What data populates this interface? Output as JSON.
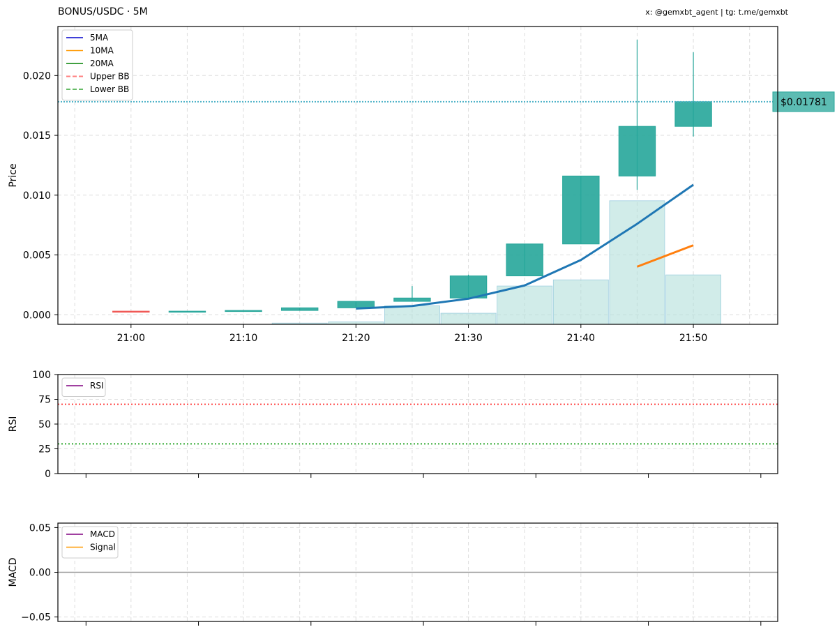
{
  "header": {
    "title": "BONUS/USDC · 5M",
    "credit": "x: @gemxbt_agent | tg: t.me/gemxbt"
  },
  "colors": {
    "up": "#26a69a",
    "down": "#ef5350",
    "ma5": "#1f77b4",
    "ma10": "#ff7f0e",
    "ma20": "#2ca02c",
    "volume": "#b2dfdb",
    "price_line": "#4fb3c8",
    "rsi_overbought": "#ff4444",
    "rsi_oversold": "#33aa33",
    "rsi": "#800080",
    "macd": "#800080",
    "signal": "#ff9900",
    "grid": "#dddddd"
  },
  "chart_data": [
    {
      "type": "candlestick",
      "panel": "price",
      "title": "BONUS/USDC · 5M",
      "ylabel": "Price",
      "ylim": [
        -0.0008,
        0.0241
      ],
      "yticks": [
        "0.000",
        "0.005",
        "0.010",
        "0.015",
        "0.020"
      ],
      "ytick_values": [
        0.0,
        0.005,
        0.01,
        0.015,
        0.02
      ],
      "xticks": [
        "21:00",
        "21:10",
        "21:20",
        "21:30",
        "21:40",
        "21:50"
      ],
      "xtick_minutes": [
        0,
        10,
        20,
        30,
        40,
        50
      ],
      "xlim_minutes": [
        -6.5,
        57.5
      ],
      "grid": true,
      "legend_position": "top-left",
      "legend": [
        {
          "label": "5MA",
          "color": "#0000cc",
          "style": "solid"
        },
        {
          "label": "10MA",
          "color": "#ff9900",
          "style": "solid"
        },
        {
          "label": "20MA",
          "color": "#008000",
          "style": "solid"
        },
        {
          "label": "Upper BB",
          "color": "#ff7f7f",
          "style": "dashed"
        },
        {
          "label": "Lower BB",
          "color": "#66bb66",
          "style": "dashed"
        }
      ],
      "candles": [
        {
          "t": 0,
          "open": 0.0003,
          "high": 0.0003,
          "low": 0.00026,
          "close": 0.00026
        },
        {
          "t": 5,
          "open": 0.00026,
          "high": 0.0003,
          "low": 0.00026,
          "close": 0.0003
        },
        {
          "t": 10,
          "open": 0.0003,
          "high": 0.00036,
          "low": 0.0003,
          "close": 0.00036
        },
        {
          "t": 15,
          "open": 0.00036,
          "high": 0.00058,
          "low": 0.00036,
          "close": 0.00058
        },
        {
          "t": 20,
          "open": 0.00058,
          "high": 0.00112,
          "low": 0.00058,
          "close": 0.00112
        },
        {
          "t": 25,
          "open": 0.00112,
          "high": 0.0024,
          "low": 0.00112,
          "close": 0.0014
        },
        {
          "t": 30,
          "open": 0.0014,
          "high": 0.00335,
          "low": 0.0014,
          "close": 0.00325
        },
        {
          "t": 35,
          "open": 0.00325,
          "high": 0.00592,
          "low": 0.00325,
          "close": 0.00592
        },
        {
          "t": 40,
          "open": 0.00592,
          "high": 0.0116,
          "low": 0.00592,
          "close": 0.0116
        },
        {
          "t": 45,
          "open": 0.0116,
          "high": 0.023,
          "low": 0.01045,
          "close": 0.01575
        },
        {
          "t": 50,
          "open": 0.01575,
          "high": 0.02195,
          "low": 0.0149,
          "close": 0.01781
        }
      ],
      "volume_scale_max": 0.0241,
      "volume": [
        {
          "t": 15,
          "v": 0.0001
        },
        {
          "t": 20,
          "v": 0.0002
        },
        {
          "t": 25,
          "v": 0.0015
        },
        {
          "t": 30,
          "v": 0.0009
        },
        {
          "t": 35,
          "v": 0.0031
        },
        {
          "t": 40,
          "v": 0.0036
        },
        {
          "t": 45,
          "v": 0.01
        },
        {
          "t": 50,
          "v": 0.004
        }
      ],
      "series": [
        {
          "name": "5MA",
          "color": "#1f77b4",
          "x": [
            20,
            25,
            30,
            35,
            40,
            45,
            50
          ],
          "values": [
            0.00052,
            0.00073,
            0.00134,
            0.00245,
            0.00458,
            0.0076,
            0.01087
          ]
        },
        {
          "name": "10MA",
          "color": "#ff7f0e",
          "x": [
            45,
            50
          ],
          "values": [
            0.00402,
            0.00581
          ]
        }
      ],
      "last_price": 0.01781,
      "last_price_label": "$0.01781"
    },
    {
      "type": "line",
      "panel": "rsi",
      "ylabel": "RSI",
      "ylim": [
        0,
        100
      ],
      "yticks": [
        "0",
        "25",
        "50",
        "75",
        "100"
      ],
      "ytick_values": [
        0,
        25,
        50,
        75,
        100
      ],
      "overbought": 70,
      "oversold": 30,
      "grid": true,
      "legend_position": "top-left",
      "legend": [
        {
          "label": "RSI",
          "color": "#800080",
          "style": "solid"
        }
      ],
      "series": []
    },
    {
      "type": "line",
      "panel": "macd",
      "ylabel": "MACD",
      "ylim": [
        -0.055,
        0.055
      ],
      "yticks": [
        "0.05",
        "0.00",
        "−0.05"
      ],
      "ytick_values": [
        0.05,
        0.0,
        -0.05
      ],
      "zero_line": 0,
      "grid": true,
      "legend_position": "top-left",
      "legend": [
        {
          "label": "MACD",
          "color": "#800080",
          "style": "solid"
        },
        {
          "label": "Signal",
          "color": "#ff9900",
          "style": "solid"
        }
      ],
      "series": []
    }
  ]
}
